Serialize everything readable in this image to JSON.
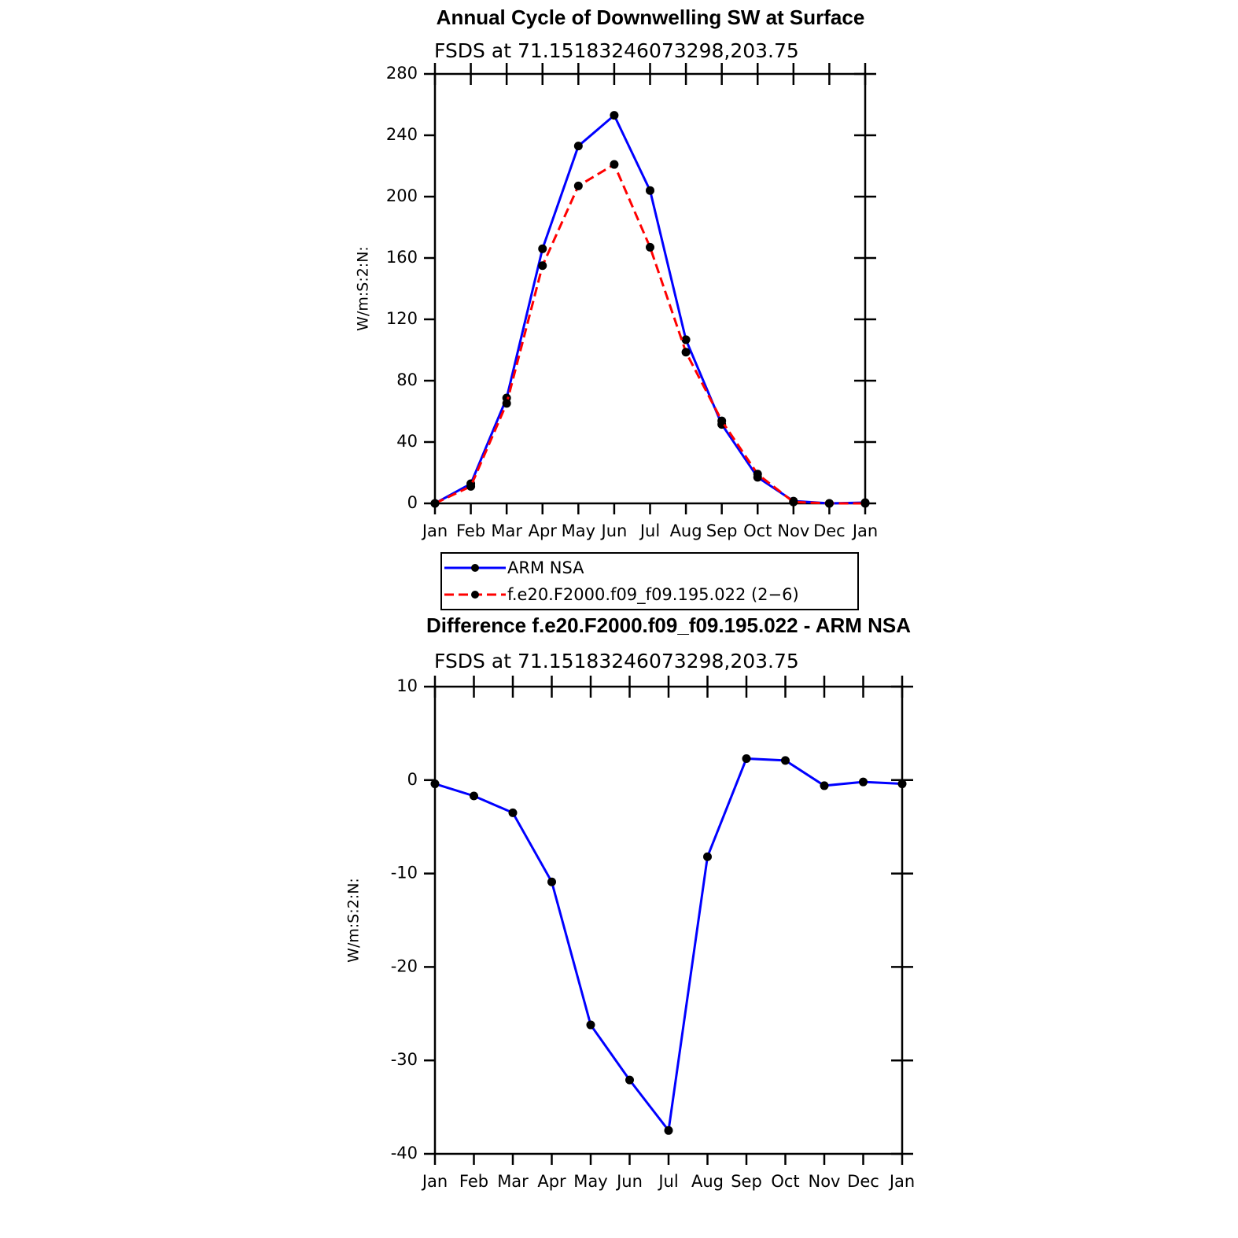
{
  "chart_data": [
    {
      "type": "line",
      "title": "Annual Cycle of Downwelling SW at Surface",
      "subtitle": "FSDS at 71.15183246073298,203.75",
      "y_label": "W/m:S:2:N:",
      "categories": [
        "Jan",
        "Feb",
        "Mar",
        "Apr",
        "May",
        "Jun",
        "Jul",
        "Aug",
        "Sep",
        "Oct",
        "Nov",
        "Dec",
        "Jan"
      ],
      "series": [
        {
          "name": "ARM NSA",
          "color": "#0000ff",
          "line_style": "solid",
          "values": [
            0,
            12.8,
            68.7,
            166,
            233,
            253,
            204,
            106.7,
            51.5,
            17,
            1.5,
            0,
            0.5
          ]
        },
        {
          "name": "f.e20.F2000.f09_f09.195.022 (2−6)",
          "color": "#ff0000",
          "line_style": "dashed",
          "values": [
            0,
            11.1,
            65.2,
            155,
            207,
            221,
            167,
            98.6,
            53.8,
            19.1,
            0.9,
            0,
            0
          ]
        }
      ],
      "ylim": [
        0,
        280
      ],
      "yticks": [
        0,
        40,
        80,
        120,
        160,
        200,
        240,
        280
      ],
      "legend": "bottom"
    },
    {
      "type": "line",
      "title": "Difference f.e20.F2000.f09_f09.195.022 - ARM NSA",
      "subtitle": "FSDS at 71.15183246073298,203.75",
      "y_label": "W/m:S:2:N:",
      "categories": [
        "Jan",
        "Feb",
        "Mar",
        "Apr",
        "May",
        "Jun",
        "Jul",
        "Aug",
        "Sep",
        "Oct",
        "Nov",
        "Dec",
        "Jan"
      ],
      "series": [
        {
          "color": "#0000ff",
          "line_style": "solid",
          "values": [
            -0.4,
            -1.7,
            -3.5,
            -10.9,
            -26.2,
            -32.1,
            -37.5,
            -8.2,
            2.3,
            2.1,
            -0.6,
            -0.2,
            -0.4
          ]
        }
      ],
      "ylim": [
        -40,
        10
      ],
      "yticks": [
        -40,
        -30,
        -20,
        -10,
        0,
        10
      ]
    }
  ]
}
